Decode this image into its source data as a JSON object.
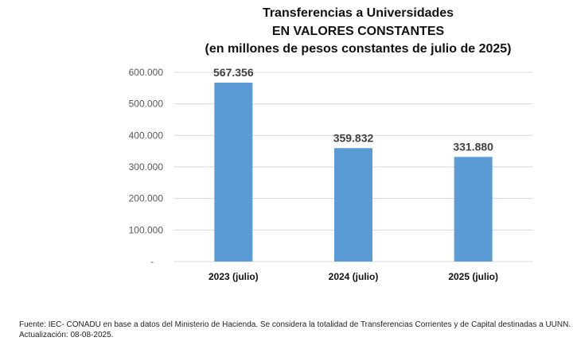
{
  "chart_data": {
    "type": "bar",
    "title_lines": [
      "Transferencias a Universidades",
      "EN VALORES CONSTANTES",
      "(en millones de pesos constantes de julio de 2025)"
    ],
    "categories": [
      "2023 (julio)",
      "2024 (julio)",
      "2025 (julio)"
    ],
    "values": [
      567356,
      359832,
      331880
    ],
    "data_labels": [
      "567.356",
      "359.832",
      "331.880"
    ],
    "ylim": [
      0,
      600000
    ],
    "yticks": [
      0,
      100000,
      200000,
      300000,
      400000,
      500000,
      600000
    ],
    "ytick_labels": [
      "-",
      "100.000",
      "200.000",
      "300.000",
      "400.000",
      "500.000",
      "600.000"
    ],
    "grid": true,
    "bar_color": "#5b9bd5",
    "xlabel": "",
    "ylabel": ""
  },
  "footer": {
    "source": "Fuente: IEC- CONADU en base a datos del Ministerio de Hacienda. Se considera la totalidad de Transferencias Corrientes  y de Capital destinadas a UUNN.",
    "update": "Actualización: 08-08-2025."
  }
}
